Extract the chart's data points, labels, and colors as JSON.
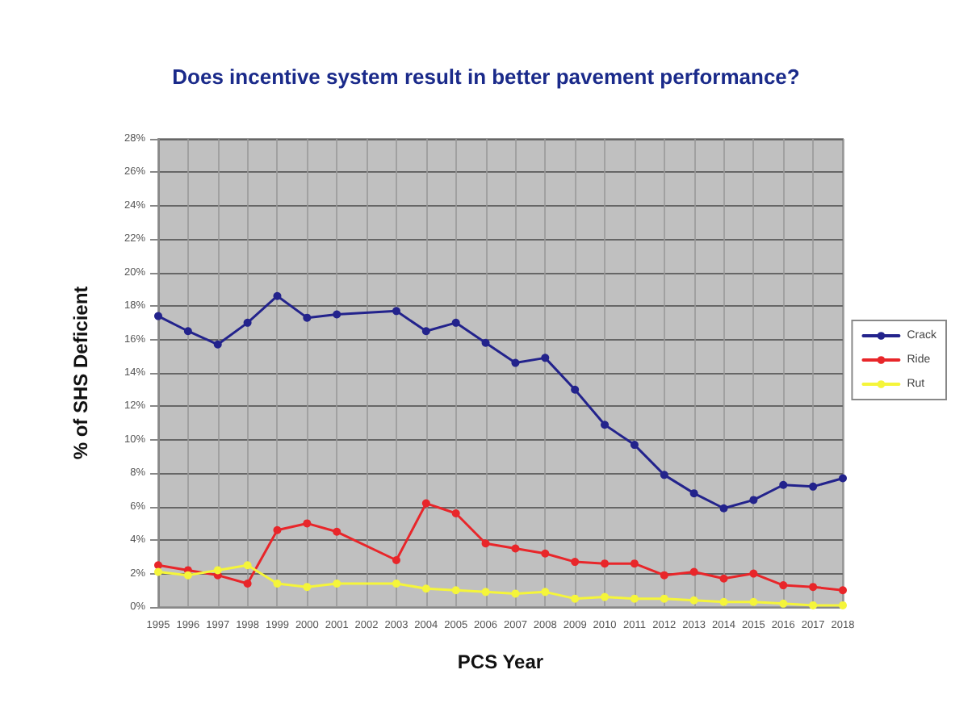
{
  "chart_data": {
    "type": "line",
    "title": "Does incentive system result in better pavement performance?",
    "xlabel": "PCS Year",
    "ylabel": "% of SHS Deficient",
    "categories": [
      "1995",
      "1996",
      "1997",
      "1998",
      "1999",
      "2000",
      "2001",
      "2002",
      "2003",
      "2004",
      "2005",
      "2006",
      "2007",
      "2008",
      "2009",
      "2010",
      "2011",
      "2012",
      "2013",
      "2014",
      "2015",
      "2016",
      "2017",
      "2018"
    ],
    "series": [
      {
        "name": "Crack",
        "color": "#23238c",
        "values": [
          17.4,
          16.5,
          15.7,
          17.0,
          18.6,
          17.3,
          17.5,
          null,
          17.7,
          16.5,
          17.0,
          15.8,
          14.6,
          14.9,
          13.0,
          10.9,
          9.7,
          7.9,
          6.8,
          5.9,
          6.4,
          7.3,
          7.2,
          7.7
        ]
      },
      {
        "name": "Ride",
        "color": "#e8262a",
        "values": [
          2.5,
          2.2,
          1.9,
          1.4,
          4.6,
          5.0,
          4.5,
          null,
          2.8,
          6.2,
          5.6,
          3.8,
          3.5,
          3.2,
          2.7,
          2.6,
          2.6,
          1.9,
          2.1,
          1.7,
          2.0,
          1.3,
          1.2,
          1.0
        ]
      },
      {
        "name": "Rut",
        "color": "#f5f53a",
        "values": [
          2.1,
          1.9,
          2.2,
          2.5,
          1.4,
          1.2,
          1.4,
          null,
          1.4,
          1.1,
          1.0,
          0.9,
          0.8,
          0.9,
          0.5,
          0.6,
          0.5,
          0.5,
          0.4,
          0.3,
          0.3,
          0.2,
          0.1,
          0.1
        ]
      }
    ],
    "ylim": [
      0,
      28
    ],
    "yticks": [
      {
        "value": 0,
        "label": "0%"
      },
      {
        "value": 2,
        "label": "2%"
      },
      {
        "value": 4,
        "label": "4%"
      },
      {
        "value": 6,
        "label": "6%"
      },
      {
        "value": 8,
        "label": "8%"
      },
      {
        "value": 10,
        "label": "10%"
      },
      {
        "value": 12,
        "label": "12%"
      },
      {
        "value": 14,
        "label": "14%"
      },
      {
        "value": 16,
        "label": "16%"
      },
      {
        "value": 18,
        "label": "18%"
      },
      {
        "value": 20,
        "label": "20%"
      },
      {
        "value": 22,
        "label": "22%"
      },
      {
        "value": 24,
        "label": "24%"
      },
      {
        "value": 26,
        "label": "26%"
      },
      {
        "value": 28,
        "label": "28%"
      }
    ],
    "grid": true,
    "legend": "right",
    "marker": "circle",
    "line_style": "solid"
  }
}
